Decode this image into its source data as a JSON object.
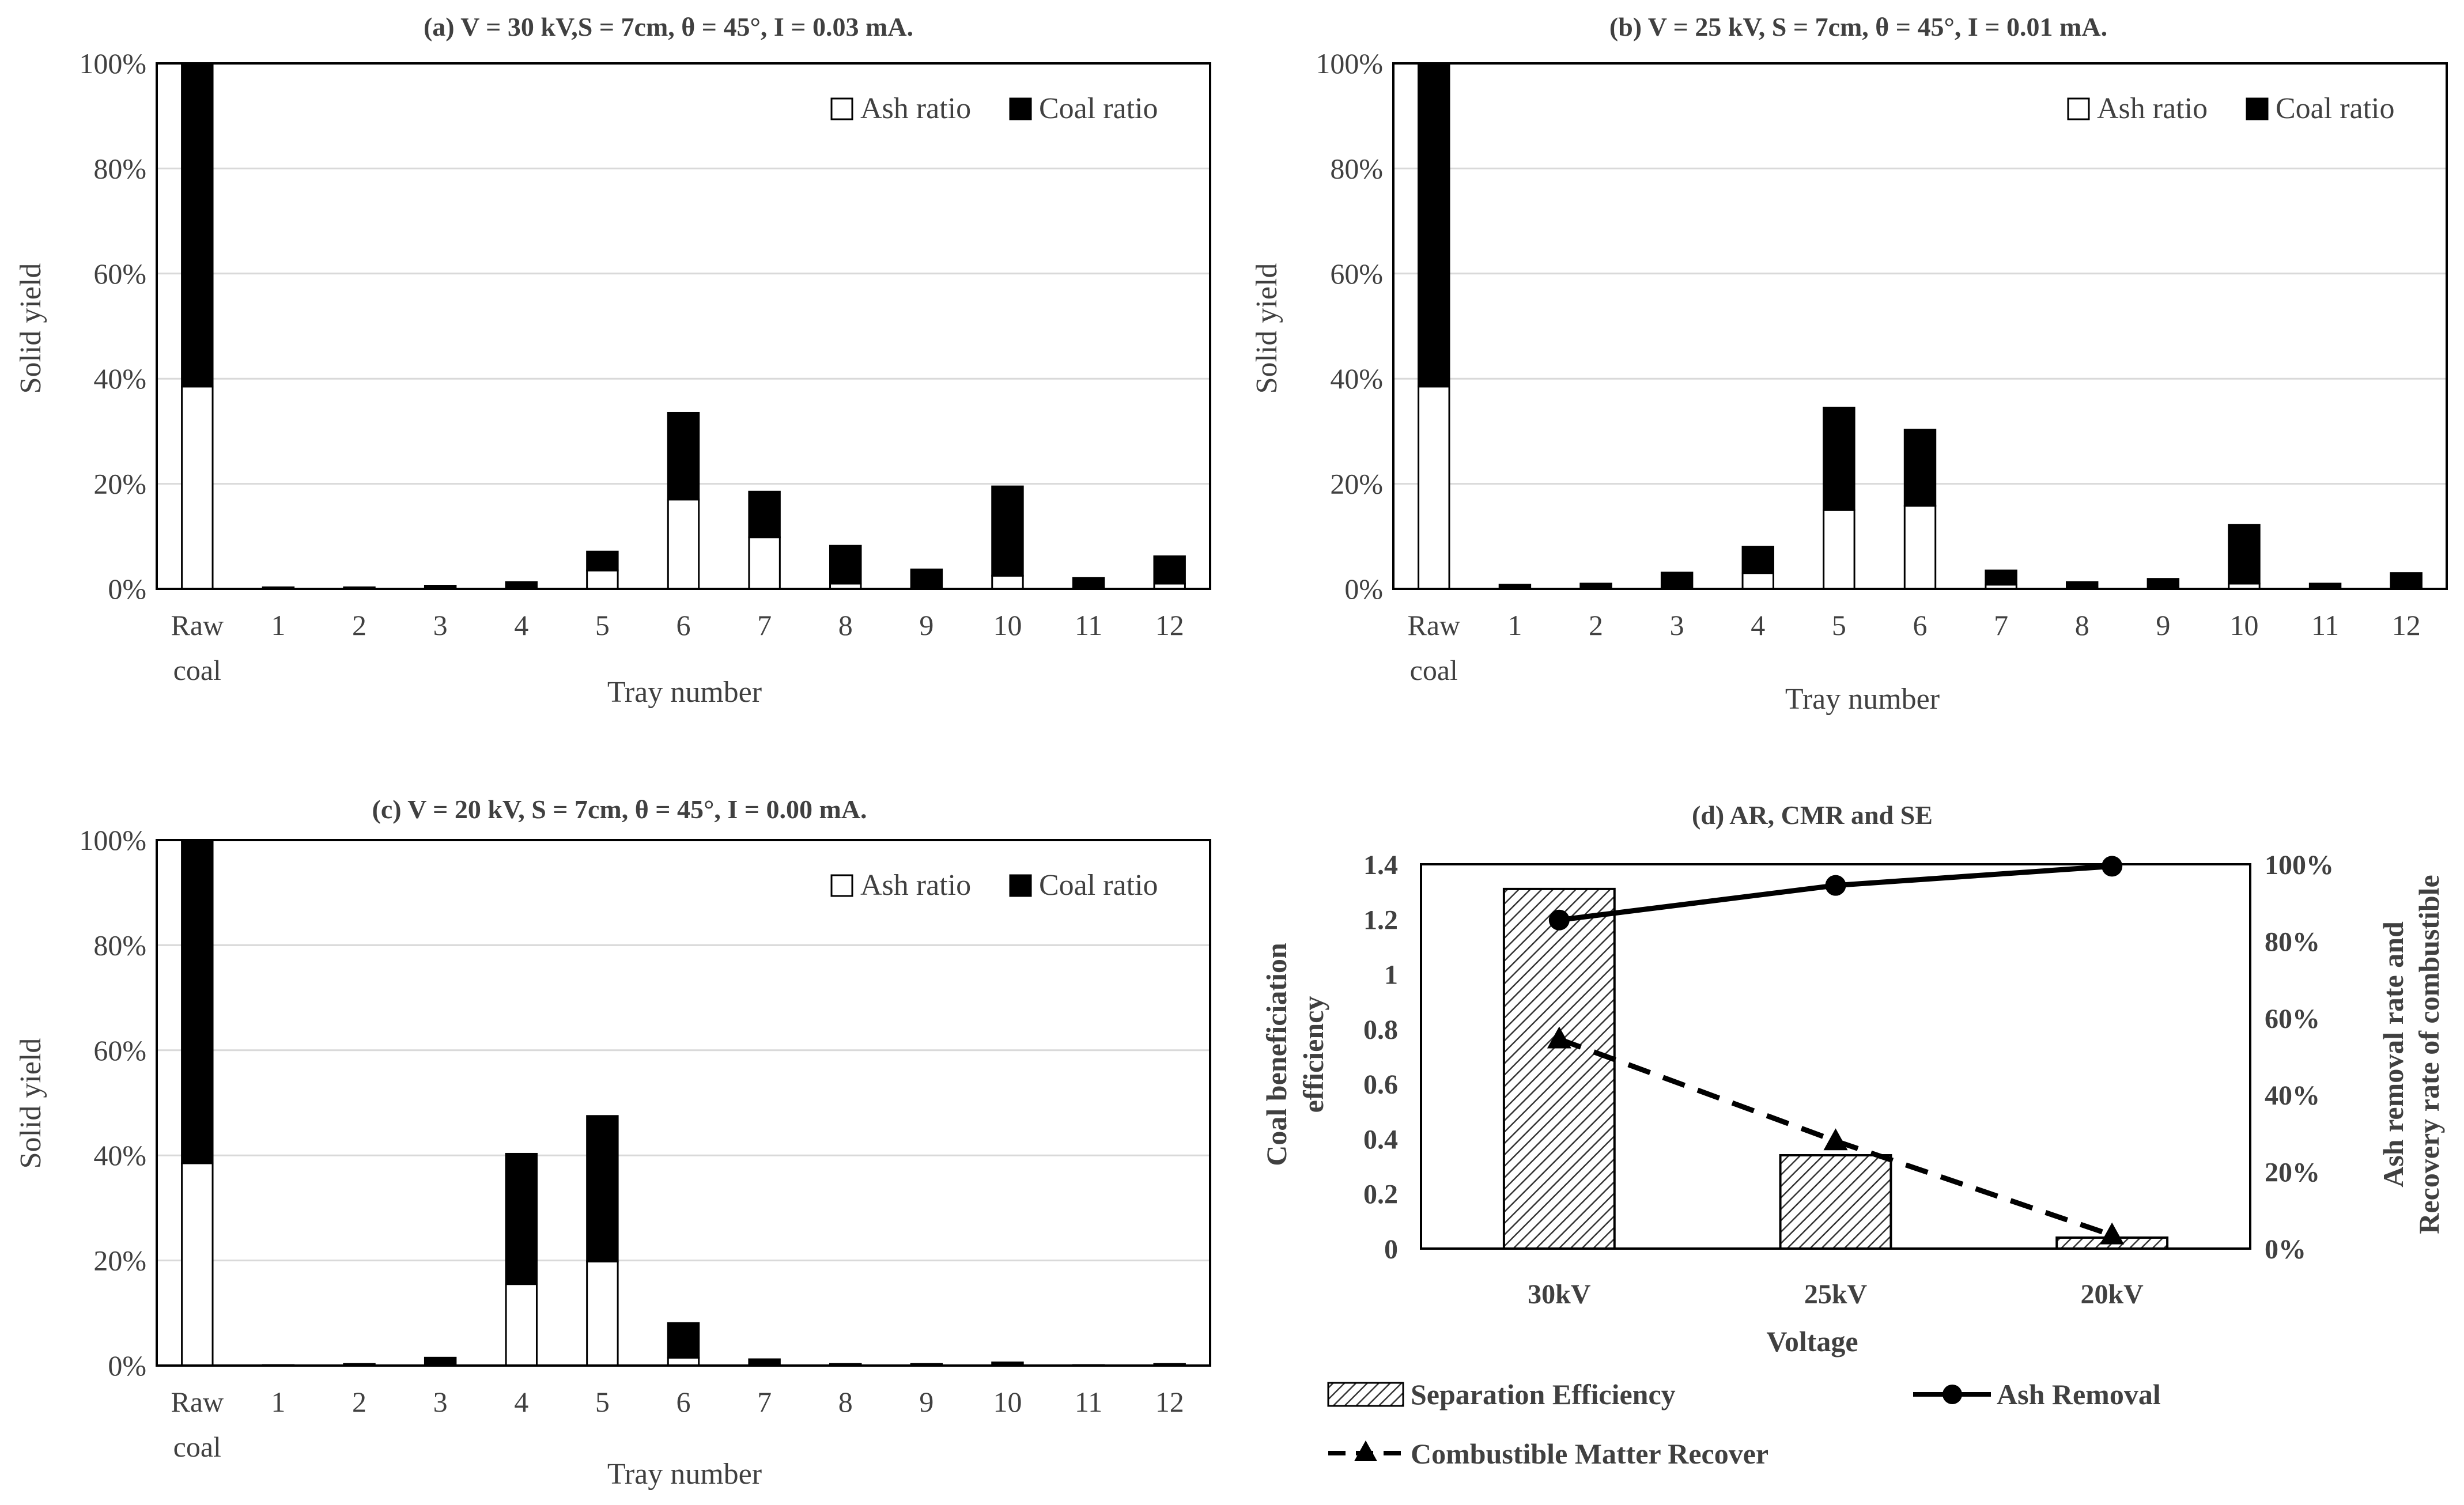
{
  "chart_data": [
    {
      "type": "bar",
      "stacked": true,
      "title": "(a) V = 30 kV,S = 7cm,  θ = 45°, I = 0.03 mA.",
      "xlabel": "Tray number",
      "ylabel": "Solid yield",
      "categories": [
        "Raw coal",
        "1",
        "2",
        "3",
        "4",
        "5",
        "6",
        "7",
        "8",
        "9",
        "10",
        "11",
        "12"
      ],
      "ylim": [
        0,
        100
      ],
      "yticks": [
        "0%",
        "20%",
        "40%",
        "60%",
        "80%",
        "100%"
      ],
      "series": [
        {
          "name": "Ash ratio",
          "color": "#ffffff",
          "values": [
            38.5,
            0,
            0,
            0,
            0.1,
            3.5,
            17,
            9.8,
            1.0,
            0.2,
            2.5,
            0.1,
            1.0
          ]
        },
        {
          "name": "Coal ratio",
          "color": "#000000",
          "values": [
            61.5,
            0.3,
            0.3,
            0.6,
            1.2,
            3.6,
            16.5,
            8.7,
            7.2,
            3.5,
            17,
            2.0,
            5.2
          ]
        }
      ],
      "legend": "top-right",
      "grid": true
    },
    {
      "type": "bar",
      "stacked": true,
      "title": "(b) V = 25 kV, S = 7cm, θ = 45°, I = 0.01 mA.",
      "xlabel": "Tray number",
      "ylabel": "Solid yield",
      "categories": [
        "Raw coal",
        "1",
        "2",
        "3",
        "4",
        "5",
        "6",
        "7",
        "8",
        "9",
        "10",
        "11",
        "12"
      ],
      "ylim": [
        0,
        100
      ],
      "yticks": [
        "0%",
        "20%",
        "40%",
        "60%",
        "80%",
        "100%"
      ],
      "series": [
        {
          "name": "Ash ratio",
          "color": "#ffffff",
          "values": [
            38.5,
            0,
            0,
            0,
            3.0,
            15,
            15.8,
            0.8,
            0.1,
            0.1,
            1.0,
            0,
            0.2
          ]
        },
        {
          "name": "Coal ratio",
          "color": "#000000",
          "values": [
            61.5,
            0.8,
            1.0,
            3.1,
            5.0,
            19.5,
            14.5,
            2.7,
            1.2,
            1.8,
            11.2,
            1.0,
            2.8
          ]
        }
      ],
      "legend": "top-right",
      "grid": true
    },
    {
      "type": "bar",
      "stacked": true,
      "title": "(c) V = 20 kV, S = 7cm, θ = 45°, I = 0.00 mA.",
      "xlabel": "Tray number",
      "ylabel": "Solid yield",
      "categories": [
        "Raw coal",
        "1",
        "2",
        "3",
        "4",
        "5",
        "6",
        "7",
        "8",
        "9",
        "10",
        "11",
        "12"
      ],
      "ylim": [
        0,
        100
      ],
      "yticks": [
        "0%",
        "20%",
        "40%",
        "60%",
        "80%",
        "100%"
      ],
      "series": [
        {
          "name": "Ash ratio",
          "color": "#ffffff",
          "values": [
            38.5,
            0,
            0,
            0,
            15.5,
            19.8,
            1.5,
            0,
            0,
            0,
            0,
            0,
            0
          ]
        },
        {
          "name": "Coal ratio",
          "color": "#000000",
          "values": [
            61.5,
            0.1,
            0.3,
            1.5,
            24.8,
            27.7,
            6.6,
            1.2,
            0.3,
            0.3,
            0.6,
            0.1,
            0.3
          ]
        }
      ],
      "legend": "top-right",
      "grid": true
    },
    {
      "type": "bar",
      "title": "(d) AR, CMR and SE",
      "xlabel": "Voltage",
      "ylabel": "Coal beneficiation efficiency",
      "y2label": "Ash removal rate and Recovery rate of combustible",
      "categories": [
        "30kV",
        "25kV",
        "20kV"
      ],
      "ylim": [
        0,
        1.4
      ],
      "yticks": [
        "0",
        "0.2",
        "0.4",
        "0.6",
        "0.8",
        "1",
        "1.2",
        "1.4"
      ],
      "y2lim": [
        0,
        100
      ],
      "y2ticks": [
        "0%",
        "20%",
        "40%",
        "60%",
        "80%",
        "100%"
      ],
      "series": [
        {
          "name": "Separation Efficiency",
          "kind": "bar",
          "axis": "left",
          "fill": "hatched",
          "values": [
            1.31,
            0.34,
            0.04
          ]
        },
        {
          "name": "Ash Removal",
          "kind": "line",
          "axis": "right",
          "marker": "circle",
          "line": "solid",
          "values": [
            85.5,
            94.5,
            99.5
          ]
        },
        {
          "name": "Combustible Matter Recover",
          "kind": "line",
          "axis": "right",
          "marker": "triangle",
          "line": "dashed",
          "values": [
            54.5,
            28.0,
            3.5
          ]
        }
      ],
      "legend": "bottom",
      "grid": false
    }
  ]
}
